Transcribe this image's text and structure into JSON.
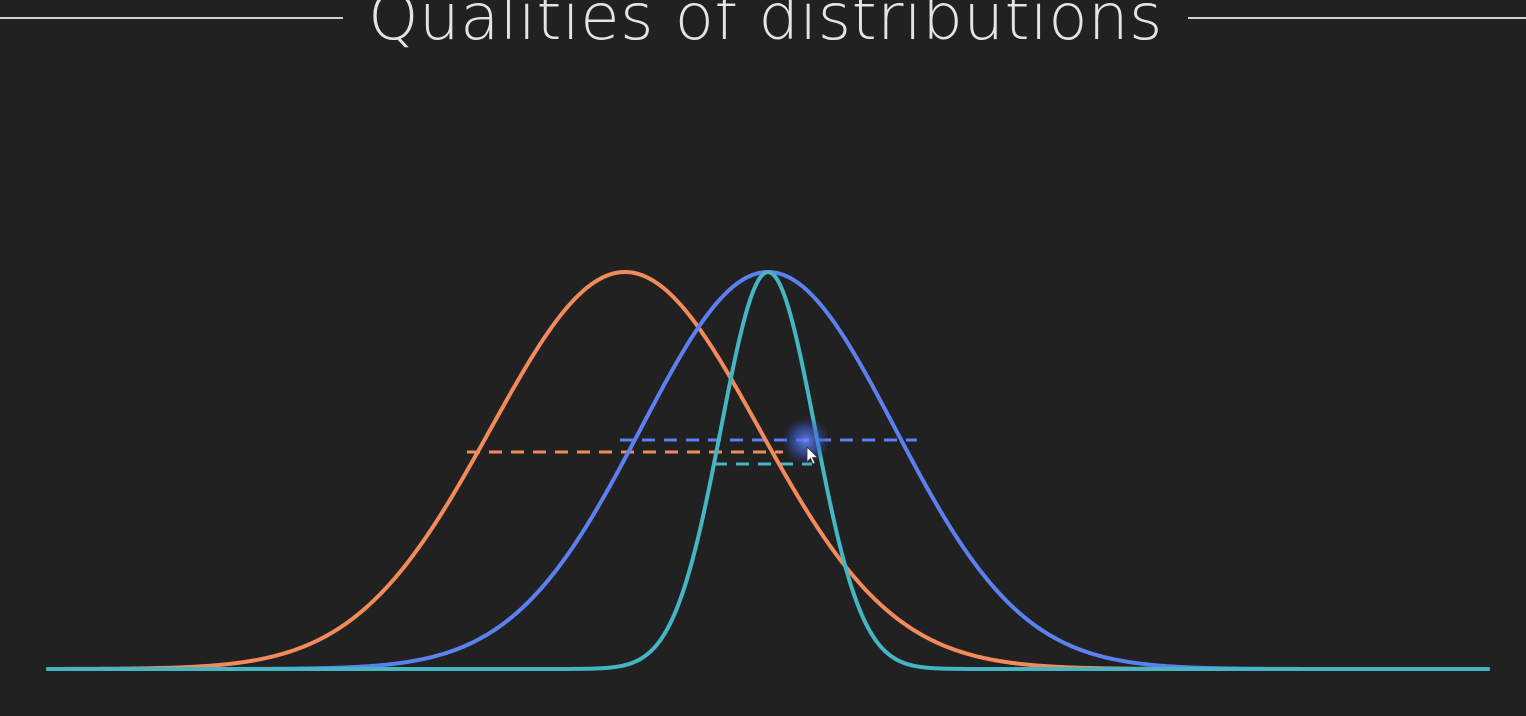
{
  "slide": {
    "title": "Qualities of distributions"
  },
  "colors": {
    "background": "#212121",
    "orange": "#F28A5B",
    "blue": "#5B80F0",
    "teal": "#45B5C4",
    "title": "#e4e4e4",
    "rule": "#cfcfcf"
  },
  "curves": [
    {
      "id": "orange",
      "color": "#F28A5B",
      "mean": 625,
      "sd": 134,
      "peak": 272,
      "base": 669,
      "half_width_line": true
    },
    {
      "id": "blue",
      "color": "#5B80F0",
      "mean": 768,
      "sd": 127,
      "peak": 272,
      "base": 669,
      "half_width_line": true
    },
    {
      "id": "teal",
      "color": "#45B5C4",
      "mean": 768,
      "sd": 47,
      "peak": 272,
      "base": 669,
      "half_width_line": true
    }
  ],
  "cursor": {
    "icon": "pointer-arrow-icon"
  }
}
